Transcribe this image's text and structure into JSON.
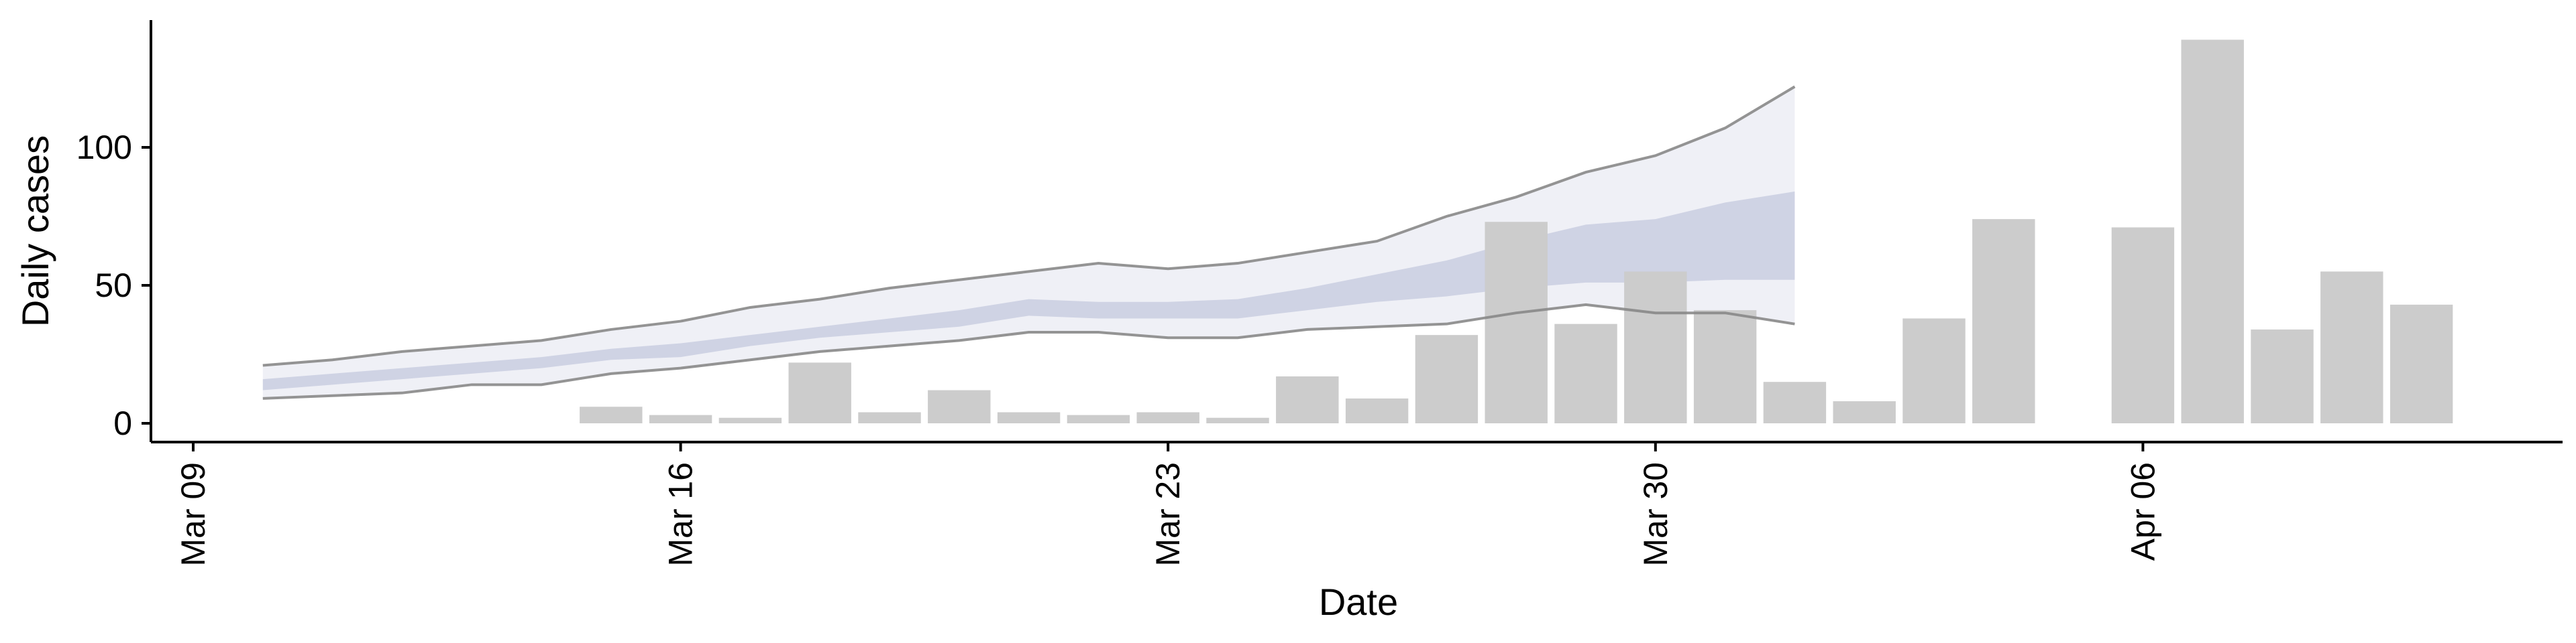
{
  "chart_data": {
    "type": "bar",
    "title": "",
    "xlabel": "Date",
    "ylabel": "Daily cases",
    "x_ticks": [
      "Mar 09",
      "Mar 16",
      "Mar 23",
      "Mar 30",
      "Apr 06"
    ],
    "y_ticks": [
      0,
      50,
      100
    ],
    "ylim": [
      -7,
      145
    ],
    "xlim_days": [
      "2020-03-09",
      "2020-04-14"
    ],
    "grid": false,
    "legend": "none",
    "bars": {
      "name": "",
      "color": "#cccccc",
      "dates": [
        "Mar 15",
        "Mar 16",
        "Mar 17",
        "Mar 18",
        "Mar 19",
        "Mar 20",
        "Mar 21",
        "Mar 22",
        "Mar 23",
        "Mar 24",
        "Mar 25",
        "Mar 26",
        "Mar 27",
        "Mar 28",
        "Mar 29",
        "Mar 30",
        "Mar 31",
        "Apr 01",
        "Apr 02",
        "Apr 03",
        "Apr 04",
        "Apr 05",
        "Apr 06",
        "Apr 07",
        "Apr 08",
        "Apr 09",
        "Apr 10"
      ],
      "values": [
        6,
        3,
        2,
        22,
        4,
        12,
        4,
        3,
        4,
        2,
        17,
        9,
        32,
        73,
        36,
        55,
        41,
        15,
        8,
        38,
        74,
        0,
        71,
        139,
        34,
        55,
        43
      ]
    },
    "forecast": {
      "dates": [
        "Mar 10",
        "Mar 11",
        "Mar 12",
        "Mar 13",
        "Mar 14",
        "Mar 15",
        "Mar 16",
        "Mar 17",
        "Mar 18",
        "Mar 19",
        "Mar 20",
        "Mar 21",
        "Mar 22",
        "Mar 23",
        "Mar 24",
        "Mar 25",
        "Mar 26",
        "Mar 27",
        "Mar 28",
        "Mar 29",
        "Mar 30",
        "Mar 31",
        "Apr 01"
      ],
      "outer_lower": [
        9,
        10,
        11,
        14,
        14,
        18,
        20,
        23,
        26,
        28,
        30,
        33,
        33,
        31,
        31,
        34,
        35,
        36,
        40,
        43,
        40,
        40,
        36
      ],
      "outer_upper": [
        21,
        23,
        26,
        28,
        30,
        34,
        37,
        42,
        45,
        49,
        52,
        55,
        58,
        56,
        58,
        62,
        66,
        75,
        82,
        91,
        97,
        107,
        122
      ],
      "inner_lower": [
        12,
        14,
        16,
        18,
        20,
        23,
        24,
        28,
        31,
        33,
        35,
        39,
        38,
        38,
        38,
        41,
        44,
        46,
        49,
        51,
        51,
        52,
        52
      ],
      "inner_upper": [
        16,
        18,
        20,
        22,
        24,
        27,
        29,
        32,
        35,
        38,
        41,
        45,
        44,
        44,
        45,
        49,
        54,
        59,
        66,
        72,
        74,
        80,
        84
      ],
      "band_color": "#9aa3c8",
      "line_color": "#888888"
    }
  }
}
